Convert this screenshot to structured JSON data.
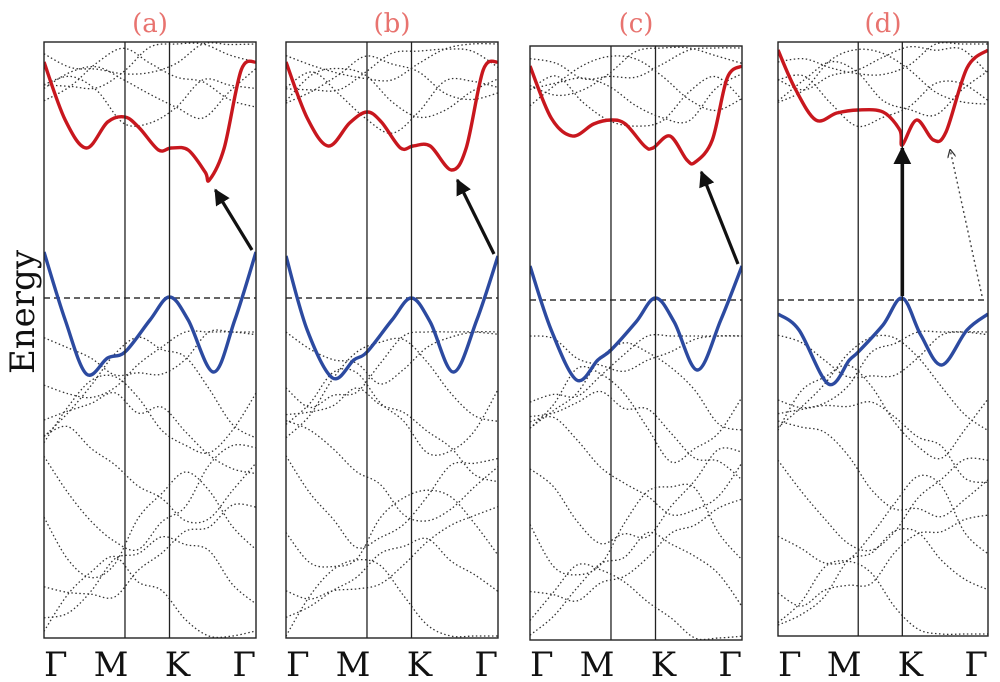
{
  "figure": {
    "y_axis_label": "Energy",
    "k_path_labels": [
      "Γ",
      "M",
      "K",
      "Γ"
    ],
    "panels": [
      {
        "label": "(a)",
        "arrow": "indirect",
        "dashed_arrow": false
      },
      {
        "label": "(b)",
        "arrow": "indirect",
        "dashed_arrow": false
      },
      {
        "label": "(c)",
        "arrow": "indirect",
        "dashed_arrow": false
      },
      {
        "label": "(d)",
        "arrow": "direct",
        "dashed_arrow": true
      }
    ]
  },
  "colors": {
    "panel_label": "#e8736f",
    "conduction_band": "#c8171e",
    "valence_band": "#2c4aa0",
    "other_bands": "#333333",
    "fermi_level": "#333333",
    "frame": "#222222"
  }
}
